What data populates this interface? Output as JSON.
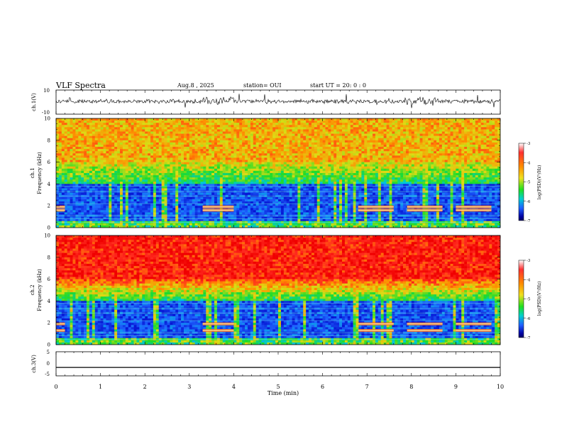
{
  "header": {
    "title": "VLF Spectra",
    "date": "Aug.8  , 2025",
    "station": "station= OUI",
    "start": "start  UT  =   20: 0  : 0"
  },
  "chart_data": [
    {
      "type": "line",
      "name": "ch.1 waveform",
      "ylabel": "ch.1(V)",
      "xlim": [
        0,
        10
      ],
      "ylim": [
        -10,
        10
      ],
      "yticks": [
        -10,
        10
      ],
      "note": "noisy waveform with spikes, near zero"
    },
    {
      "type": "heatmap",
      "name": "ch.1 spectrogram",
      "ylabel": "Frequency (kHz)",
      "side_label": "ch.1",
      "xlim": [
        0,
        10
      ],
      "ylim": [
        0,
        10
      ],
      "yticks": [
        0,
        2,
        4,
        6,
        8,
        10
      ],
      "colorbar": {
        "label": "log(PSD)(V²/Hz)",
        "ticks": [
          -3,
          -4,
          -5,
          -6,
          -7
        ],
        "range": [
          -7,
          -3
        ]
      },
      "bands_kHz": [
        1.6,
        1.9
      ],
      "band_intervals_min": [
        [
          0,
          0.2
        ],
        [
          3.3,
          4.0
        ],
        [
          6.8,
          7.6
        ],
        [
          7.9,
          8.7
        ],
        [
          9.0,
          9.8
        ]
      ]
    },
    {
      "type": "heatmap",
      "name": "ch.2 spectrogram",
      "ylabel": "Frequency (kHz)",
      "side_label": "ch.2",
      "xlim": [
        0,
        10
      ],
      "ylim": [
        0,
        10
      ],
      "yticks": [
        0,
        2,
        4,
        6,
        8,
        10
      ],
      "colorbar": {
        "label": "log(PSD)(V²/Hz)",
        "ticks": [
          -3,
          -4,
          -5,
          -6,
          -7
        ],
        "range": [
          -7,
          -3
        ]
      },
      "bands_kHz": [
        1.3,
        1.9
      ],
      "band_intervals_min": [
        [
          0,
          0.2
        ],
        [
          3.3,
          4.0
        ],
        [
          6.8,
          7.6
        ],
        [
          7.9,
          8.7
        ],
        [
          9.0,
          9.8
        ]
      ]
    },
    {
      "type": "line",
      "name": "ch.3 waveform",
      "ylabel": "ch.3(V)",
      "xlim": [
        0,
        10
      ],
      "ylim": [
        -5,
        5
      ],
      "yticks": [
        -5,
        0,
        5
      ],
      "value": -1.5
    }
  ],
  "x_axis": {
    "label": "Time  (min)",
    "ticks": [
      "0",
      "1",
      "2",
      "3",
      "4",
      "5",
      "6",
      "7",
      "8",
      "9",
      "10"
    ]
  }
}
